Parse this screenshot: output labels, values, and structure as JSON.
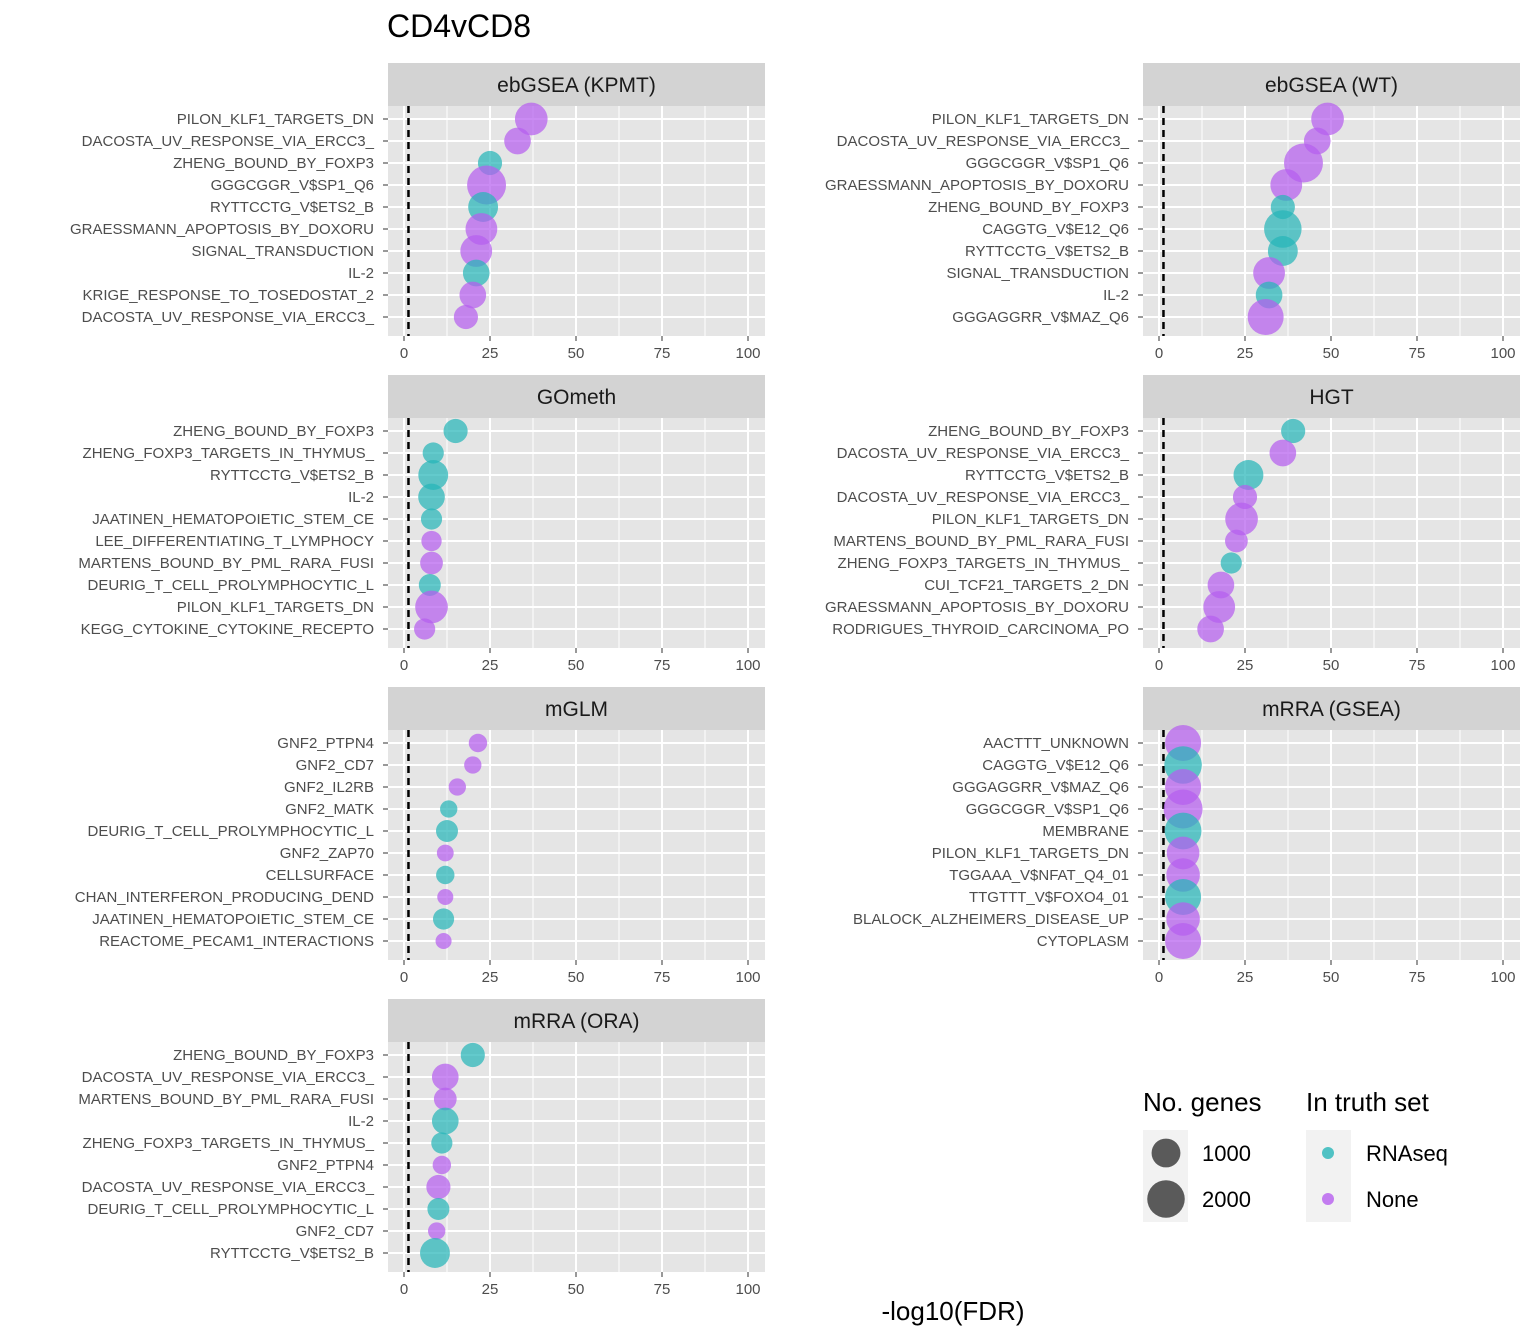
{
  "title": "CD4vCD8",
  "xlabel": "-log10(FDR)",
  "colors": {
    "RNAseq": "#27b5b8",
    "None": "#b65eef",
    "panel_bg": "#e5e5e5",
    "strip_bg": "#d3d3d3",
    "grid": "#ffffff"
  },
  "legend": {
    "size_title": "No. genes",
    "size_items": [
      {
        "label": "1000",
        "value": 1000
      },
      {
        "label": "2000",
        "value": 2000
      }
    ],
    "color_title": "In truth set",
    "color_items": [
      {
        "label": "RNAseq",
        "key": "RNAseq"
      },
      {
        "label": "None",
        "key": "None"
      }
    ]
  },
  "chart_data": {
    "type": "scatter",
    "facets": true,
    "xlim": [
      0,
      100
    ],
    "x_ticks": [
      0,
      25,
      50,
      75,
      100
    ],
    "reference_line_x": 1.3,
    "panels": [
      {
        "name": "ebGSEA (KPMT)",
        "points": [
          {
            "label": "PILON_KLF1_TARGETS_DN",
            "x": 37,
            "truth": "None",
            "genes": 1400
          },
          {
            "label": "DACOSTA_UV_RESPONSE_VIA_ERCC3_",
            "x": 33,
            "truth": "None",
            "genes": 800
          },
          {
            "label": "ZHENG_BOUND_BY_FOXP3",
            "x": 25,
            "truth": "RNAseq",
            "genes": 600
          },
          {
            "label": "GGGCGGR_V$SP1_Q6",
            "x": 24,
            "truth": "None",
            "genes": 2200
          },
          {
            "label": "RYTTCCTG_V$ETS2_B",
            "x": 23,
            "truth": "RNAseq",
            "genes": 1100
          },
          {
            "label": "GRAESSMANN_APOPTOSIS_BY_DOXORU",
            "x": 22.5,
            "truth": "None",
            "genes": 1300
          },
          {
            "label": "SIGNAL_TRANSDUCTION",
            "x": 21,
            "truth": "None",
            "genes": 1300
          },
          {
            "label": "IL-2",
            "x": 21,
            "truth": "RNAseq",
            "genes": 800
          },
          {
            "label": "KRIGE_RESPONSE_TO_TOSEDOSTAT_2",
            "x": 20,
            "truth": "None",
            "genes": 800
          },
          {
            "label": "DACOSTA_UV_RESPONSE_VIA_ERCC3_",
            "x": 18,
            "truth": "None",
            "genes": 600
          }
        ]
      },
      {
        "name": "ebGSEA (WT)",
        "points": [
          {
            "label": "PILON_KLF1_TARGETS_DN",
            "x": 49,
            "truth": "None",
            "genes": 1400
          },
          {
            "label": "DACOSTA_UV_RESPONSE_VIA_ERCC3_",
            "x": 46,
            "truth": "None",
            "genes": 800
          },
          {
            "label": "GGGCGGR_V$SP1_Q6",
            "x": 42,
            "truth": "None",
            "genes": 2200
          },
          {
            "label": "GRAESSMANN_APOPTOSIS_BY_DOXORU",
            "x": 37,
            "truth": "None",
            "genes": 1300
          },
          {
            "label": "ZHENG_BOUND_BY_FOXP3",
            "x": 36,
            "truth": "RNAseq",
            "genes": 600
          },
          {
            "label": "CAGGTG_V$E12_Q6",
            "x": 36,
            "truth": "RNAseq",
            "genes": 2000
          },
          {
            "label": "RYTTCCTG_V$ETS2_B",
            "x": 36,
            "truth": "RNAseq",
            "genes": 1100
          },
          {
            "label": "SIGNAL_TRANSDUCTION",
            "x": 32,
            "truth": "None",
            "genes": 1300
          },
          {
            "label": "IL-2",
            "x": 32,
            "truth": "RNAseq",
            "genes": 800
          },
          {
            "label": "GGGAGGRR_V$MAZ_Q6",
            "x": 31,
            "truth": "None",
            "genes": 1800
          }
        ]
      },
      {
        "name": "GOmeth",
        "points": [
          {
            "label": "ZHENG_BOUND_BY_FOXP3",
            "x": 15,
            "truth": "RNAseq",
            "genes": 600
          },
          {
            "label": "ZHENG_FOXP3_TARGETS_IN_THYMUS_",
            "x": 8.5,
            "truth": "RNAseq",
            "genes": 400
          },
          {
            "label": "RYTTCCTG_V$ETS2_B",
            "x": 8.5,
            "truth": "RNAseq",
            "genes": 1100
          },
          {
            "label": "IL-2",
            "x": 8,
            "truth": "RNAseq",
            "genes": 800
          },
          {
            "label": "JAATINEN_HEMATOPOIETIC_STEM_CE",
            "x": 8,
            "truth": "RNAseq",
            "genes": 400
          },
          {
            "label": "LEE_DIFFERENTIATING_T_LYMPHOCY",
            "x": 8,
            "truth": "None",
            "genes": 350
          },
          {
            "label": "MARTENS_BOUND_BY_PML_RARA_FUSI",
            "x": 8,
            "truth": "None",
            "genes": 500
          },
          {
            "label": "DEURIG_T_CELL_PROLYMPHOCYTIC_L",
            "x": 7.5,
            "truth": "RNAseq",
            "genes": 450
          },
          {
            "label": "PILON_KLF1_TARGETS_DN",
            "x": 8,
            "truth": "None",
            "genes": 1400
          },
          {
            "label": "KEGG_CYTOKINE_CYTOKINE_RECEPTO",
            "x": 6,
            "truth": "None",
            "genes": 400
          }
        ]
      },
      {
        "name": "HGT",
        "points": [
          {
            "label": "ZHENG_BOUND_BY_FOXP3",
            "x": 39,
            "truth": "RNAseq",
            "genes": 600
          },
          {
            "label": "DACOSTA_UV_RESPONSE_VIA_ERCC3_",
            "x": 36,
            "truth": "None",
            "genes": 800
          },
          {
            "label": "RYTTCCTG_V$ETS2_B",
            "x": 26,
            "truth": "RNAseq",
            "genes": 1100
          },
          {
            "label": "DACOSTA_UV_RESPONSE_VIA_ERCC3_",
            "x": 25,
            "truth": "None",
            "genes": 600
          },
          {
            "label": "PILON_KLF1_TARGETS_DN",
            "x": 24,
            "truth": "None",
            "genes": 1400
          },
          {
            "label": "MARTENS_BOUND_BY_PML_RARA_FUSI",
            "x": 22.5,
            "truth": "None",
            "genes": 500
          },
          {
            "label": "ZHENG_FOXP3_TARGETS_IN_THYMUS_",
            "x": 21,
            "truth": "RNAseq",
            "genes": 400
          },
          {
            "label": "CUI_TCF21_TARGETS_2_DN",
            "x": 18,
            "truth": "None",
            "genes": 800
          },
          {
            "label": "GRAESSMANN_APOPTOSIS_BY_DOXORU",
            "x": 17.5,
            "truth": "None",
            "genes": 1300
          },
          {
            "label": "RODRIGUES_THYROID_CARCINOMA_PO",
            "x": 15,
            "truth": "None",
            "genes": 800
          }
        ]
      },
      {
        "name": "mGLM",
        "points": [
          {
            "label": "GNF2_PTPN4",
            "x": 21.5,
            "truth": "None",
            "genes": 250
          },
          {
            "label": "GNF2_CD7",
            "x": 20,
            "truth": "None",
            "genes": 200
          },
          {
            "label": "GNF2_IL2RB",
            "x": 15.5,
            "truth": "None",
            "genes": 200
          },
          {
            "label": "GNF2_MATK",
            "x": 13,
            "truth": "RNAseq",
            "genes": 200
          },
          {
            "label": "DEURIG_T_CELL_PROLYMPHOCYTIC_L",
            "x": 12.5,
            "truth": "RNAseq",
            "genes": 450
          },
          {
            "label": "GNF2_ZAP70",
            "x": 12,
            "truth": "None",
            "genes": 180
          },
          {
            "label": "CELLSURFACE",
            "x": 12,
            "truth": "RNAseq",
            "genes": 250
          },
          {
            "label": "CHAN_INTERFERON_PRODUCING_DEND",
            "x": 12,
            "truth": "None",
            "genes": 150
          },
          {
            "label": "JAATINEN_HEMATOPOIETIC_STEM_CE",
            "x": 11.5,
            "truth": "RNAseq",
            "genes": 400
          },
          {
            "label": "REACTOME_PECAM1_INTERACTIONS",
            "x": 11.5,
            "truth": "None",
            "genes": 150
          }
        ]
      },
      {
        "name": "mRRA (GSEA)",
        "points": [
          {
            "label": "AACTTT_UNKNOWN",
            "x": 7,
            "truth": "None",
            "genes": 1800
          },
          {
            "label": "CAGGTG_V$E12_Q6",
            "x": 7,
            "truth": "RNAseq",
            "genes": 2000
          },
          {
            "label": "GGGAGGRR_V$MAZ_Q6",
            "x": 7,
            "truth": "None",
            "genes": 1800
          },
          {
            "label": "GGGCGGR_V$SP1_Q6",
            "x": 7,
            "truth": "None",
            "genes": 2200
          },
          {
            "label": "MEMBRANE",
            "x": 7,
            "truth": "RNAseq",
            "genes": 1900
          },
          {
            "label": "PILON_KLF1_TARGETS_DN",
            "x": 7,
            "truth": "None",
            "genes": 1400
          },
          {
            "label": "TGGAAA_V$NFAT_Q4_01",
            "x": 7,
            "truth": "None",
            "genes": 1500
          },
          {
            "label": "TTGTTT_V$FOXO4_01",
            "x": 7,
            "truth": "RNAseq",
            "genes": 1800
          },
          {
            "label": "BLALOCK_ALZHEIMERS_DISEASE_UP",
            "x": 7,
            "truth": "None",
            "genes": 1500
          },
          {
            "label": "CYTOPLASM",
            "x": 7,
            "truth": "None",
            "genes": 1800
          }
        ]
      },
      {
        "name": "mRRA (ORA)",
        "points": [
          {
            "label": "ZHENG_BOUND_BY_FOXP3",
            "x": 20,
            "truth": "RNAseq",
            "genes": 600
          },
          {
            "label": "DACOSTA_UV_RESPONSE_VIA_ERCC3_",
            "x": 12,
            "truth": "None",
            "genes": 800
          },
          {
            "label": "MARTENS_BOUND_BY_PML_RARA_FUSI",
            "x": 12,
            "truth": "None",
            "genes": 500
          },
          {
            "label": "IL-2",
            "x": 12,
            "truth": "RNAseq",
            "genes": 800
          },
          {
            "label": "ZHENG_FOXP3_TARGETS_IN_THYMUS_",
            "x": 11,
            "truth": "RNAseq",
            "genes": 400
          },
          {
            "label": "GNF2_PTPN4",
            "x": 11,
            "truth": "None",
            "genes": 250
          },
          {
            "label": "DACOSTA_UV_RESPONSE_VIA_ERCC3_",
            "x": 10,
            "truth": "None",
            "genes": 600
          },
          {
            "label": "DEURIG_T_CELL_PROLYMPHOCYTIC_L",
            "x": 10,
            "truth": "RNAseq",
            "genes": 450
          },
          {
            "label": "GNF2_CD7",
            "x": 9.5,
            "truth": "None",
            "genes": 200
          },
          {
            "label": "RYTTCCTG_V$ETS2_B",
            "x": 9,
            "truth": "RNAseq",
            "genes": 1100
          }
        ]
      }
    ]
  }
}
